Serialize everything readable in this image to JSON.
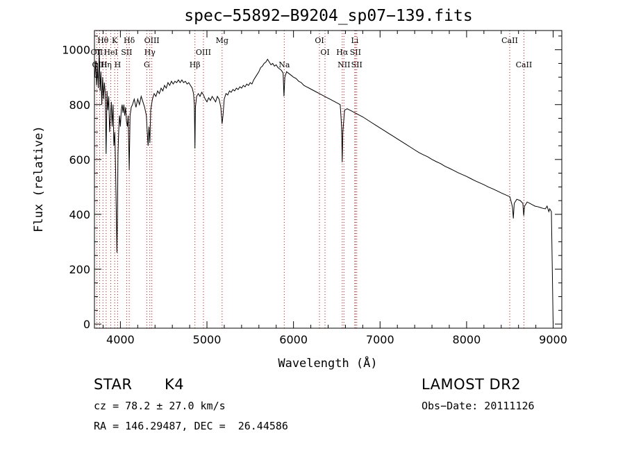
{
  "chart_data": {
    "type": "line",
    "title": "spec−55892−B9204_sp07−139.fits",
    "xlabel": "Wavelength (Å)",
    "ylabel": "Flux (relative)",
    "xlim": [
      3700,
      9100
    ],
    "ylim": [
      -15,
      1070
    ],
    "x_ticks": [
      4000,
      5000,
      6000,
      7000,
      8000,
      9000
    ],
    "y_ticks": [
      0,
      200,
      400,
      600,
      800,
      1000
    ],
    "grid": false,
    "line_color": "#000000",
    "marker_color": "#cc0000",
    "series": [
      {
        "values": [
          [
            3705,
            900
          ],
          [
            3715,
            960
          ],
          [
            3725,
            870
          ],
          [
            3735,
            940
          ],
          [
            3745,
            860
          ],
          [
            3755,
            1000
          ],
          [
            3765,
            850
          ],
          [
            3775,
            920
          ],
          [
            3785,
            800
          ],
          [
            3795,
            900
          ],
          [
            3805,
            820
          ],
          [
            3815,
            880
          ],
          [
            3825,
            840
          ],
          [
            3835,
            620
          ],
          [
            3845,
            850
          ],
          [
            3855,
            780
          ],
          [
            3865,
            830
          ],
          [
            3875,
            700
          ],
          [
            3885,
            760
          ],
          [
            3895,
            810
          ],
          [
            3905,
            720
          ],
          [
            3915,
            800
          ],
          [
            3925,
            650
          ],
          [
            3935,
            700
          ],
          [
            3945,
            560
          ],
          [
            3955,
            360
          ],
          [
            3960,
            260
          ],
          [
            3966,
            400
          ],
          [
            3972,
            620
          ],
          [
            3980,
            700
          ],
          [
            3990,
            760
          ],
          [
            4000,
            720
          ],
          [
            4010,
            780
          ],
          [
            4020,
            800
          ],
          [
            4030,
            770
          ],
          [
            4040,
            800
          ],
          [
            4050,
            760
          ],
          [
            4060,
            790
          ],
          [
            4070,
            740
          ],
          [
            4080,
            720
          ],
          [
            4090,
            760
          ],
          [
            4102,
            560
          ],
          [
            4112,
            760
          ],
          [
            4125,
            790
          ],
          [
            4140,
            800
          ],
          [
            4160,
            820
          ],
          [
            4180,
            790
          ],
          [
            4200,
            820
          ],
          [
            4220,
            800
          ],
          [
            4240,
            830
          ],
          [
            4260,
            810
          ],
          [
            4280,
            790
          ],
          [
            4300,
            760
          ],
          [
            4310,
            700
          ],
          [
            4320,
            650
          ],
          [
            4330,
            720
          ],
          [
            4340,
            660
          ],
          [
            4350,
            780
          ],
          [
            4370,
            820
          ],
          [
            4390,
            840
          ],
          [
            4410,
            830
          ],
          [
            4430,
            850
          ],
          [
            4450,
            840
          ],
          [
            4470,
            860
          ],
          [
            4490,
            850
          ],
          [
            4510,
            870
          ],
          [
            4530,
            860
          ],
          [
            4550,
            880
          ],
          [
            4570,
            870
          ],
          [
            4590,
            885
          ],
          [
            4610,
            875
          ],
          [
            4630,
            885
          ],
          [
            4650,
            880
          ],
          [
            4670,
            890
          ],
          [
            4690,
            880
          ],
          [
            4710,
            890
          ],
          [
            4730,
            880
          ],
          [
            4750,
            885
          ],
          [
            4770,
            875
          ],
          [
            4790,
            880
          ],
          [
            4810,
            870
          ],
          [
            4830,
            860
          ],
          [
            4845,
            840
          ],
          [
            4855,
            800
          ],
          [
            4861,
            640
          ],
          [
            4867,
            790
          ],
          [
            4880,
            830
          ],
          [
            4900,
            840
          ],
          [
            4920,
            830
          ],
          [
            4940,
            845
          ],
          [
            4960,
            835
          ],
          [
            4980,
            820
          ],
          [
            5000,
            810
          ],
          [
            5020,
            825
          ],
          [
            5040,
            815
          ],
          [
            5060,
            830
          ],
          [
            5080,
            820
          ],
          [
            5100,
            810
          ],
          [
            5120,
            830
          ],
          [
            5140,
            820
          ],
          [
            5160,
            790
          ],
          [
            5175,
            730
          ],
          [
            5185,
            760
          ],
          [
            5200,
            820
          ],
          [
            5220,
            840
          ],
          [
            5240,
            835
          ],
          [
            5260,
            850
          ],
          [
            5280,
            845
          ],
          [
            5300,
            855
          ],
          [
            5320,
            850
          ],
          [
            5340,
            860
          ],
          [
            5360,
            855
          ],
          [
            5380,
            865
          ],
          [
            5400,
            860
          ],
          [
            5420,
            870
          ],
          [
            5440,
            865
          ],
          [
            5460,
            875
          ],
          [
            5480,
            870
          ],
          [
            5500,
            880
          ],
          [
            5520,
            875
          ],
          [
            5540,
            890
          ],
          [
            5560,
            900
          ],
          [
            5580,
            910
          ],
          [
            5600,
            920
          ],
          [
            5620,
            935
          ],
          [
            5640,
            940
          ],
          [
            5660,
            950
          ],
          [
            5680,
            955
          ],
          [
            5700,
            965
          ],
          [
            5720,
            955
          ],
          [
            5740,
            945
          ],
          [
            5760,
            950
          ],
          [
            5780,
            940
          ],
          [
            5800,
            945
          ],
          [
            5820,
            935
          ],
          [
            5840,
            930
          ],
          [
            5860,
            925
          ],
          [
            5880,
            915
          ],
          [
            5890,
            830
          ],
          [
            5900,
            900
          ],
          [
            5920,
            920
          ],
          [
            5940,
            915
          ],
          [
            5960,
            910
          ],
          [
            5980,
            905
          ],
          [
            6000,
            900
          ],
          [
            6030,
            895
          ],
          [
            6060,
            885
          ],
          [
            6090,
            880
          ],
          [
            6120,
            870
          ],
          [
            6150,
            865
          ],
          [
            6180,
            860
          ],
          [
            6210,
            855
          ],
          [
            6240,
            850
          ],
          [
            6270,
            845
          ],
          [
            6300,
            840
          ],
          [
            6330,
            835
          ],
          [
            6360,
            830
          ],
          [
            6390,
            825
          ],
          [
            6420,
            820
          ],
          [
            6450,
            815
          ],
          [
            6480,
            810
          ],
          [
            6510,
            805
          ],
          [
            6540,
            800
          ],
          [
            6556,
            720
          ],
          [
            6563,
            590
          ],
          [
            6570,
            700
          ],
          [
            6590,
            780
          ],
          [
            6620,
            785
          ],
          [
            6650,
            780
          ],
          [
            6680,
            775
          ],
          [
            6710,
            770
          ],
          [
            6740,
            765
          ],
          [
            6770,
            760
          ],
          [
            6800,
            755
          ],
          [
            6850,
            745
          ],
          [
            6900,
            735
          ],
          [
            6950,
            725
          ],
          [
            7000,
            715
          ],
          [
            7050,
            705
          ],
          [
            7100,
            695
          ],
          [
            7150,
            685
          ],
          [
            7200,
            675
          ],
          [
            7250,
            665
          ],
          [
            7300,
            655
          ],
          [
            7350,
            645
          ],
          [
            7400,
            635
          ],
          [
            7450,
            625
          ],
          [
            7500,
            617
          ],
          [
            7550,
            610
          ],
          [
            7600,
            600
          ],
          [
            7650,
            592
          ],
          [
            7700,
            585
          ],
          [
            7750,
            575
          ],
          [
            7800,
            568
          ],
          [
            7850,
            560
          ],
          [
            7900,
            552
          ],
          [
            7950,
            545
          ],
          [
            8000,
            538
          ],
          [
            8050,
            530
          ],
          [
            8100,
            522
          ],
          [
            8150,
            515
          ],
          [
            8200,
            508
          ],
          [
            8250,
            500
          ],
          [
            8300,
            493
          ],
          [
            8350,
            486
          ],
          [
            8400,
            478
          ],
          [
            8450,
            471
          ],
          [
            8500,
            464
          ],
          [
            8520,
            440
          ],
          [
            8530,
            425
          ],
          [
            8540,
            385
          ],
          [
            8550,
            440
          ],
          [
            8580,
            455
          ],
          [
            8620,
            450
          ],
          [
            8650,
            440
          ],
          [
            8660,
            395
          ],
          [
            8670,
            430
          ],
          [
            8700,
            445
          ],
          [
            8730,
            440
          ],
          [
            8760,
            435
          ],
          [
            8790,
            430
          ],
          [
            8820,
            428
          ],
          [
            8850,
            425
          ],
          [
            8880,
            422
          ],
          [
            8910,
            420
          ],
          [
            8930,
            430
          ],
          [
            8950,
            410
          ],
          [
            8960,
            420
          ],
          [
            8970,
            415
          ],
          [
            8980,
            410
          ],
          [
            8990,
            200
          ],
          [
            9000,
            0
          ]
        ]
      }
    ],
    "line_markers": [
      {
        "label": "Hθ",
        "x": 3798,
        "row": 1
      },
      {
        "label": "K",
        "x": 3934,
        "row": 1
      },
      {
        "label": "Hδ",
        "x": 4102,
        "row": 1
      },
      {
        "label": "OIII",
        "x": 4363,
        "row": 1
      },
      {
        "label": "Mg",
        "x": 5175,
        "row": 1
      },
      {
        "label": "OI",
        "x": 6300,
        "row": 1
      },
      {
        "label": "Li",
        "x": 6708,
        "row": 1
      },
      {
        "label": "CaII",
        "x": 8498,
        "row": 1
      },
      {
        "label": "OII",
        "x": 3727,
        "row": 2
      },
      {
        "label": "HeI",
        "x": 3889,
        "row": 2
      },
      {
        "label": "SII",
        "x": 4072,
        "row": 2
      },
      {
        "label": "Hγ",
        "x": 4340,
        "row": 2
      },
      {
        "label": "OIII",
        "x": 4959,
        "row": 2
      },
      {
        "label": "OI",
        "x": 6364,
        "row": 2
      },
      {
        "label": "Hα",
        "x": 6563,
        "row": 2
      },
      {
        "label": "SII",
        "x": 6716,
        "row": 2
      },
      {
        "label": "OIII",
        "x": 3760,
        "row": 3
      },
      {
        "label": "Hη",
        "x": 3835,
        "row": 3
      },
      {
        "label": "H",
        "x": 3968,
        "row": 3
      },
      {
        "label": "G",
        "x": 4305,
        "row": 3
      },
      {
        "label": "Hβ",
        "x": 4861,
        "row": 3
      },
      {
        "label": "Na",
        "x": 5893,
        "row": 3
      },
      {
        "label": "NII",
        "x": 6583,
        "row": 3
      },
      {
        "label": "SII",
        "x": 6731,
        "row": 3
      },
      {
        "label": "CaII",
        "x": 8662,
        "row": 3
      }
    ]
  },
  "info": {
    "object_class": "STAR",
    "subclass": "K4",
    "survey": "LAMOST DR2",
    "redshift_line": "cz = 78.2 ± 27.0 km/s",
    "obs_date": "Obs−Date: 20111126",
    "coords_line": "RA = 146.29487, DEC =  26.44586"
  }
}
